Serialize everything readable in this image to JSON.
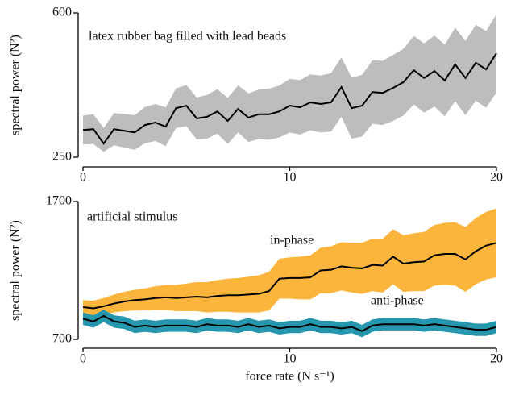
{
  "chart_data": [
    {
      "type": "line",
      "ylabel": "spectral power (N²)",
      "annotation": "latex rubber bag filled with lead beads",
      "x": [
        0,
        0.5,
        1,
        1.5,
        2,
        2.5,
        3,
        3.5,
        4,
        4.5,
        5,
        5.5,
        6,
        6.5,
        7,
        7.5,
        8,
        8.5,
        9,
        9.5,
        10,
        10.5,
        11,
        11.5,
        12,
        12.5,
        13,
        13.5,
        14,
        14.5,
        15,
        15.5,
        16,
        16.5,
        17,
        17.5,
        18,
        18.5,
        19,
        19.5,
        20
      ],
      "xlim": [
        0,
        20
      ],
      "xticks": [
        0,
        10,
        20
      ],
      "ylim": [
        250,
        600
      ],
      "yticks": [
        250,
        600
      ],
      "series": [
        {
          "color": "#000000",
          "band_color": "#bdbdbd",
          "values": [
            316,
            318,
            283,
            318,
            314,
            310,
            328,
            334,
            324,
            369,
            375,
            344,
            348,
            361,
            338,
            367,
            346,
            354,
            354,
            361,
            375,
            371,
            383,
            379,
            383,
            420,
            369,
            375,
            408,
            406,
            418,
            432,
            461,
            442,
            459,
            436,
            475,
            442,
            479,
            463,
            502
          ],
          "upper": [
            351,
            354,
            321,
            357,
            355,
            352,
            372,
            379,
            371,
            417,
            425,
            395,
            401,
            415,
            394,
            424,
            405,
            414,
            416,
            424,
            440,
            437,
            451,
            448,
            454,
            492,
            443,
            450,
            485,
            484,
            498,
            513,
            544,
            526,
            545,
            523,
            564,
            532,
            571,
            556,
            597
          ],
          "lower": [
            281,
            282,
            263,
            279,
            273,
            268,
            284,
            289,
            277,
            321,
            325,
            293,
            295,
            307,
            282,
            310,
            287,
            294,
            292,
            298,
            310,
            305,
            315,
            310,
            312,
            348,
            295,
            300,
            331,
            328,
            338,
            351,
            378,
            358,
            373,
            349,
            386,
            352,
            387,
            370,
            407
          ]
        }
      ]
    },
    {
      "type": "line",
      "ylabel": "spectral power (N²)",
      "xlabel": "force rate (N s⁻¹)",
      "annotation": "artificial stimulus",
      "x": [
        0,
        0.5,
        1,
        1.5,
        2,
        2.5,
        3,
        3.5,
        4,
        4.5,
        5,
        5.5,
        6,
        6.5,
        7,
        7.5,
        8,
        8.5,
        9,
        9.5,
        10,
        10.5,
        11,
        11.5,
        12,
        12.5,
        13,
        13.5,
        14,
        14.5,
        15,
        15.5,
        16,
        16.5,
        17,
        17.5,
        18,
        18.5,
        19,
        19.5,
        20
      ],
      "xlim": [
        0,
        20
      ],
      "xticks": [
        0,
        10,
        20
      ],
      "ylim": [
        700,
        1700
      ],
      "yticks": [
        700,
        1700
      ],
      "series": [
        {
          "name": "in-phase",
          "color": "#000000",
          "band_color": "#fbb53c",
          "values": [
            934,
            925,
            940,
            960,
            975,
            985,
            990,
            1000,
            1005,
            1000,
            1005,
            1010,
            1005,
            1015,
            1020,
            1020,
            1025,
            1030,
            1050,
            1140,
            1145,
            1145,
            1150,
            1200,
            1205,
            1230,
            1220,
            1215,
            1240,
            1235,
            1300,
            1250,
            1260,
            1265,
            1310,
            1320,
            1320,
            1280,
            1340,
            1380,
            1400
          ],
          "upper": [
            984,
            980,
            1000,
            1025,
            1045,
            1060,
            1070,
            1085,
            1095,
            1095,
            1105,
            1115,
            1115,
            1130,
            1140,
            1145,
            1155,
            1165,
            1190,
            1285,
            1295,
            1300,
            1310,
            1365,
            1375,
            1405,
            1400,
            1400,
            1430,
            1430,
            1500,
            1455,
            1470,
            1480,
            1530,
            1545,
            1550,
            1515,
            1580,
            1625,
            1650
          ],
          "lower": [
            884,
            870,
            880,
            895,
            905,
            910,
            910,
            915,
            915,
            905,
            905,
            905,
            895,
            900,
            900,
            895,
            895,
            895,
            910,
            995,
            995,
            990,
            990,
            1035,
            1035,
            1055,
            1040,
            1030,
            1050,
            1040,
            1100,
            1045,
            1050,
            1050,
            1090,
            1095,
            1090,
            1045,
            1100,
            1135,
            1150
          ]
        },
        {
          "name": "anti-phase",
          "color": "#000000",
          "band_color": "#2596ad",
          "values": [
            850,
            830,
            870,
            830,
            820,
            790,
            800,
            790,
            800,
            800,
            800,
            790,
            810,
            800,
            800,
            790,
            810,
            790,
            800,
            780,
            790,
            790,
            810,
            790,
            790,
            780,
            790,
            760,
            800,
            810,
            810,
            810,
            810,
            800,
            810,
            800,
            790,
            780,
            770,
            770,
            790
          ],
          "upper": [
            895,
            875,
            915,
            875,
            865,
            835,
            845,
            835,
            845,
            845,
            845,
            835,
            855,
            845,
            845,
            835,
            855,
            835,
            845,
            825,
            835,
            835,
            855,
            835,
            835,
            825,
            835,
            805,
            845,
            855,
            855,
            855,
            855,
            845,
            855,
            845,
            835,
            825,
            815,
            815,
            835
          ],
          "lower": [
            805,
            785,
            825,
            785,
            775,
            745,
            755,
            745,
            755,
            755,
            755,
            745,
            765,
            755,
            755,
            745,
            765,
            745,
            755,
            735,
            745,
            745,
            765,
            745,
            745,
            735,
            745,
            715,
            755,
            765,
            765,
            765,
            765,
            755,
            765,
            755,
            745,
            735,
            725,
            725,
            745
          ]
        }
      ]
    }
  ]
}
